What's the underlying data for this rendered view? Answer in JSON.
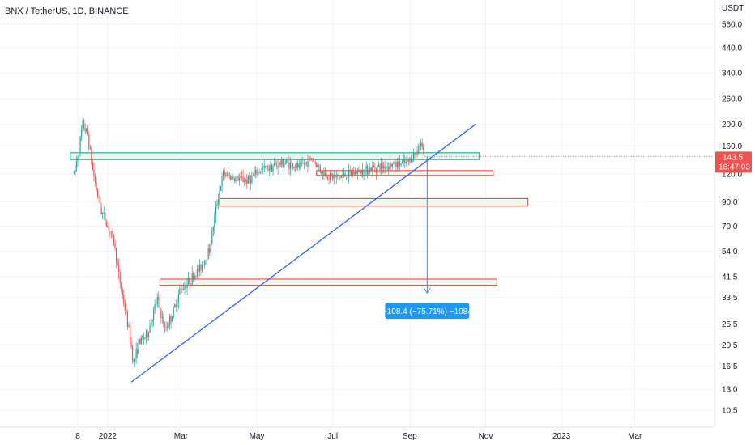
{
  "header": {
    "symbol_title": "BNX / TetherUS, 1D, BINANCE"
  },
  "price_axis": {
    "currency": "USDT"
  },
  "last_price": {
    "value": "143.5",
    "countdown": "16:47:03"
  },
  "measure": {
    "label": "−108.4 (−75.71%) −1084"
  },
  "colors": {
    "up": "#26a69a",
    "down": "#ef5350",
    "trendline": "#2962ff",
    "measure": "#2196f3",
    "grid": "#f0f3fa",
    "zone_border": "#e53935",
    "zone_fill": "#f3f6ec",
    "green_zone_border": "#089981",
    "green_zone_fill": "#e8f5ec"
  },
  "chart_data": {
    "type": "candlestick",
    "title": "BNX / TetherUS, 1D, BINANCE",
    "y_scale": "log",
    "x_ticks": [
      "8",
      "2022",
      "Mar",
      "May",
      "Jul",
      "Sep",
      "Nov",
      "2023",
      "Mar"
    ],
    "y_ticks": [
      "560.0",
      "440.0",
      "340.0",
      "260.0",
      "200.0",
      "160.0",
      "120.0",
      "90.0",
      "70.0",
      "54.0",
      "41.5",
      "33.5",
      "25.5",
      "20.5",
      "16.5",
      "13.0",
      "10.5"
    ],
    "ylim": [
      8.8,
      720
    ],
    "price_path": [
      [
        "2021-12-05",
        120
      ],
      [
        "2021-12-08",
        145
      ],
      [
        "2021-12-12",
        200
      ],
      [
        "2021-12-16",
        180
      ],
      [
        "2021-12-20",
        125
      ],
      [
        "2021-12-26",
        85
      ],
      [
        "2022-01-01",
        70
      ],
      [
        "2022-01-06",
        60
      ],
      [
        "2022-01-10",
        42
      ],
      [
        "2022-01-14",
        32
      ],
      [
        "2022-01-18",
        24
      ],
      [
        "2022-01-22",
        17
      ],
      [
        "2022-01-26",
        21
      ],
      [
        "2022-02-02",
        23
      ],
      [
        "2022-02-10",
        33
      ],
      [
        "2022-02-16",
        24
      ],
      [
        "2022-02-22",
        28
      ],
      [
        "2022-02-28",
        36
      ],
      [
        "2022-03-08",
        40
      ],
      [
        "2022-03-16",
        45
      ],
      [
        "2022-03-24",
        55
      ],
      [
        "2022-03-30",
        90
      ],
      [
        "2022-04-04",
        120
      ],
      [
        "2022-04-12",
        115
      ],
      [
        "2022-04-24",
        112
      ],
      [
        "2022-05-04",
        125
      ],
      [
        "2022-05-14",
        130
      ],
      [
        "2022-05-24",
        135
      ],
      [
        "2022-06-04",
        128
      ],
      [
        "2022-06-14",
        140
      ],
      [
        "2022-06-24",
        120
      ],
      [
        "2022-07-04",
        115
      ],
      [
        "2022-07-20",
        122
      ],
      [
        "2022-08-04",
        128
      ],
      [
        "2022-08-20",
        132
      ],
      [
        "2022-08-30",
        134
      ],
      [
        "2022-09-06",
        150
      ],
      [
        "2022-09-10",
        165
      ],
      [
        "2022-09-13",
        143.5
      ]
    ],
    "horizontal_zones": [
      {
        "from": "2021-12-02",
        "to": "2022-10-27",
        "low": 139,
        "high": 149,
        "color": "green"
      },
      {
        "from": "2022-06-18",
        "to": "2022-11-07",
        "low": 118,
        "high": 124,
        "color": "red"
      },
      {
        "from": "2022-04-01",
        "to": "2022-12-05",
        "low": 86,
        "high": 93,
        "color": "red"
      },
      {
        "from": "2022-02-12",
        "to": "2022-11-10",
        "low": 38,
        "high": 40.5,
        "color": "red"
      }
    ],
    "trendline": {
      "from": [
        "2022-01-20",
        14
      ],
      "to": [
        "2022-10-24",
        200
      ]
    },
    "measure_arrow": {
      "from_date": "2022-09-15",
      "from_price": 143.5,
      "to_price": 35.1
    },
    "last_price": 143.5
  }
}
